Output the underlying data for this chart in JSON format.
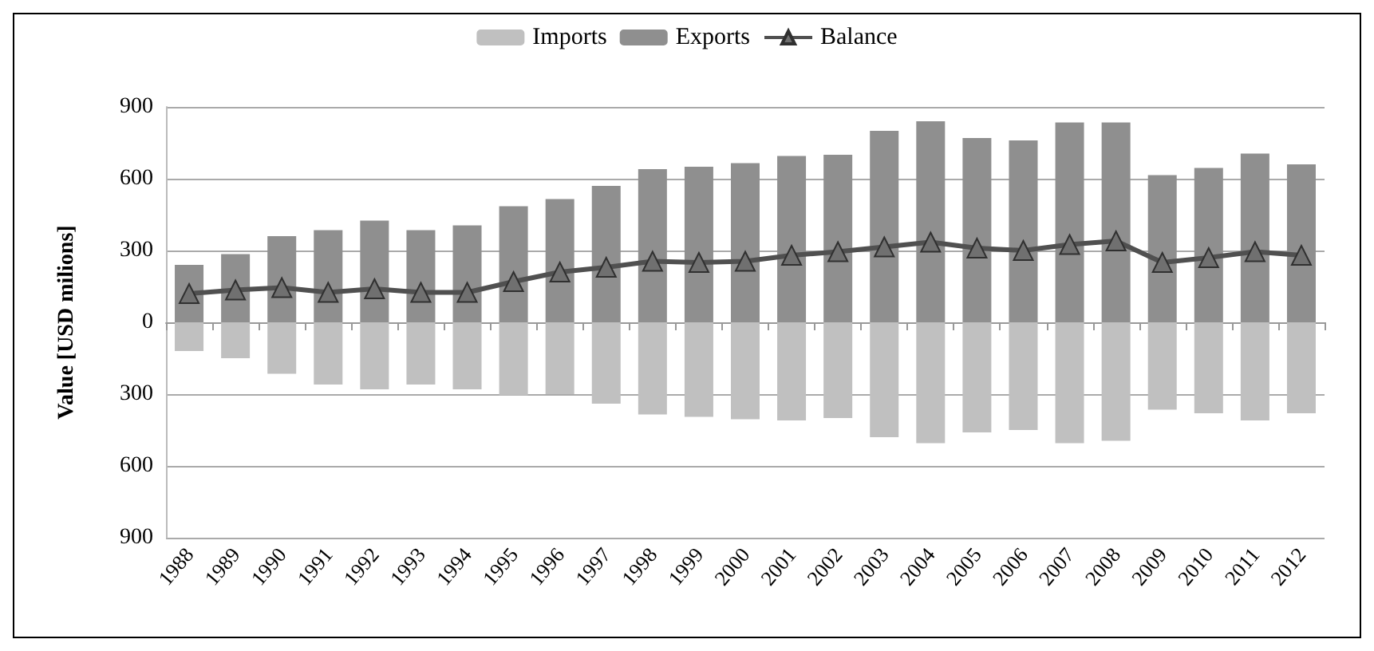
{
  "chart_data": {
    "type": "bar",
    "stacked": true,
    "ylabel": "Value [USD milions]",
    "categories": [
      "1988",
      "1989",
      "1990",
      "1991",
      "1992",
      "1993",
      "1994",
      "1995",
      "1996",
      "1997",
      "1998",
      "1999",
      "2000",
      "2001",
      "2002",
      "2003",
      "2004",
      "2005",
      "2006",
      "2007",
      "2008",
      "2009",
      "2010",
      "2011",
      "2012"
    ],
    "series": [
      {
        "name": "Imports",
        "color": "#c0c0c0",
        "values": [
          -120,
          -150,
          -215,
          -260,
          -280,
          -260,
          -280,
          -305,
          -300,
          -340,
          -385,
          -395,
          -405,
          -410,
          -400,
          -480,
          -505,
          -460,
          -450,
          -505,
          -495,
          -365,
          -380,
          -410,
          -380
        ]
      },
      {
        "name": "Exports",
        "color": "#8f8f8f",
        "values": [
          240,
          285,
          360,
          385,
          425,
          385,
          405,
          485,
          515,
          570,
          640,
          650,
          665,
          695,
          700,
          800,
          840,
          770,
          760,
          835,
          835,
          615,
          645,
          705,
          660
        ]
      },
      {
        "name": "Balance",
        "type": "line",
        "color": "#505050",
        "marker": "triangle",
        "values": [
          120,
          135,
          145,
          125,
          140,
          125,
          125,
          170,
          210,
          230,
          255,
          250,
          255,
          280,
          295,
          315,
          335,
          310,
          300,
          325,
          340,
          250,
          270,
          295,
          280
        ]
      }
    ],
    "ylim": [
      -900,
      900
    ],
    "yticks": [
      {
        "value": -900,
        "label": "900"
      },
      {
        "value": -600,
        "label": "600"
      },
      {
        "value": -300,
        "label": "300"
      },
      0,
      300,
      600,
      900
    ],
    "grid": "y",
    "legend": "top"
  }
}
